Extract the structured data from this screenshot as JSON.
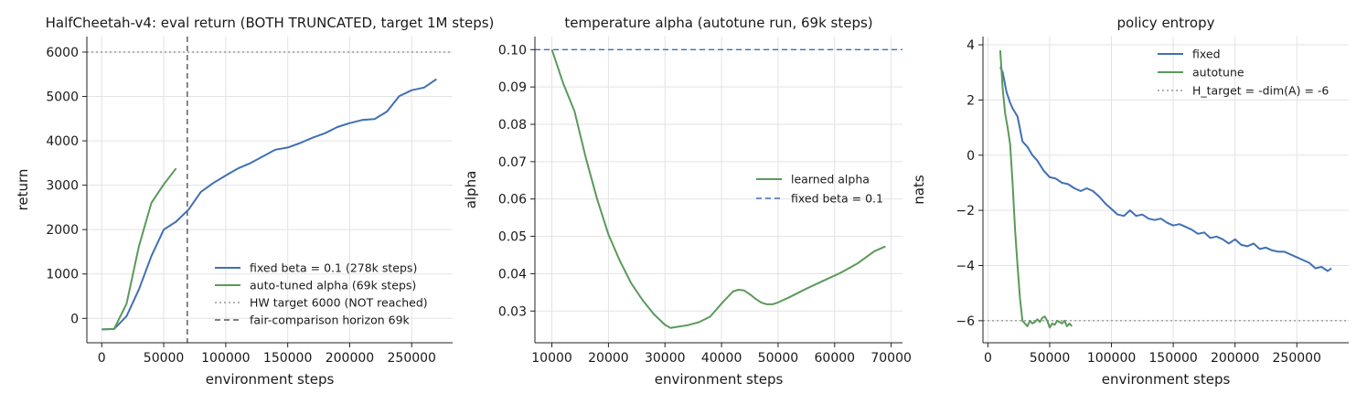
{
  "chart_data": [
    {
      "type": "line",
      "title": "HalfCheetah-v4: eval return  (BOTH TRUNCATED, target 1M steps)",
      "xlabel": "environment steps",
      "ylabel": "return",
      "xlim": [
        -12000,
        283000
      ],
      "ylim": [
        -550,
        6350
      ],
      "xticks": [
        0,
        50000,
        100000,
        150000,
        200000,
        250000
      ],
      "yticks": [
        0,
        1000,
        2000,
        3000,
        4000,
        5000,
        6000
      ],
      "grid": true,
      "legend_loc": "lower-right",
      "series": [
        {
          "name": "fixed beta = 0.1 (278k steps)",
          "color": "#4070b4",
          "style": "solid",
          "x": [
            0,
            10000,
            20000,
            30000,
            40000,
            50000,
            60000,
            70000,
            80000,
            90000,
            100000,
            110000,
            120000,
            130000,
            140000,
            150000,
            160000,
            170000,
            180000,
            190000,
            200000,
            210000,
            220000,
            230000,
            240000,
            250000,
            260000,
            270000
          ],
          "y": [
            -250,
            -240,
            50,
            650,
            1400,
            2000,
            2180,
            2450,
            2850,
            3050,
            3220,
            3380,
            3500,
            3650,
            3800,
            3850,
            3950,
            4070,
            4170,
            4310,
            4400,
            4470,
            4490,
            4660,
            5010,
            5140,
            5200,
            5390
          ]
        },
        {
          "name": "auto-tuned alpha (69k steps)",
          "color": "#5a9a5a",
          "style": "solid",
          "x": [
            0,
            10000,
            20000,
            30000,
            40000,
            50000,
            60000
          ],
          "y": [
            -250,
            -240,
            330,
            1620,
            2600,
            3020,
            3380
          ]
        },
        {
          "name": "HW target 6000 (NOT reached)",
          "color": "#999999",
          "style": "dotted",
          "hline": 6000
        },
        {
          "name": "fair-comparison horizon 69k",
          "color": "#555555",
          "style": "dashed",
          "vline": 69000
        }
      ]
    },
    {
      "type": "line",
      "title": "temperature alpha (autotune run, 69k steps)",
      "xlabel": "environment steps",
      "ylabel": "alpha",
      "xlim": [
        7000,
        72000
      ],
      "ylim": [
        0.0215,
        0.1035
      ],
      "xticks": [
        10000,
        20000,
        30000,
        40000,
        50000,
        60000,
        70000
      ],
      "yticks": [
        0.03,
        0.04,
        0.05,
        0.06,
        0.07,
        0.08,
        0.09,
        0.1
      ],
      "ytick_labels": [
        "0.03",
        "0.04",
        "0.05",
        "0.06",
        "0.07",
        "0.08",
        "0.09",
        "0.10"
      ],
      "grid": true,
      "legend_loc": "center-right",
      "series": [
        {
          "name": "learned alpha",
          "color": "#5a9a5a",
          "style": "solid",
          "x": [
            10000,
            12000,
            14000,
            16000,
            18000,
            20000,
            22000,
            24000,
            26000,
            28000,
            30000,
            31000,
            32000,
            34000,
            36000,
            38000,
            40000,
            42000,
            43000,
            44000,
            45000,
            46000,
            47000,
            48000,
            49000,
            50000,
            52000,
            55000,
            58000,
            61000,
            64000,
            67000,
            69000
          ],
          "y": [
            0.1,
            0.091,
            0.0835,
            0.071,
            0.06,
            0.0505,
            0.0435,
            0.0375,
            0.033,
            0.0292,
            0.0263,
            0.0255,
            0.0257,
            0.0262,
            0.027,
            0.0285,
            0.032,
            0.0352,
            0.0357,
            0.0355,
            0.0345,
            0.0333,
            0.0323,
            0.0318,
            0.0318,
            0.0323,
            0.0337,
            0.036,
            0.0381,
            0.0402,
            0.0427,
            0.046,
            0.0473
          ]
        },
        {
          "name": "fixed beta = 0.1",
          "color": "#4070b4",
          "style": "dashed",
          "hline": 0.1
        }
      ]
    },
    {
      "type": "line",
      "title": "policy entropy",
      "xlabel": "environment steps",
      "ylabel": "nats",
      "xlim": [
        -4000,
        292000
      ],
      "ylim": [
        -6.8,
        4.3
      ],
      "xticks": [
        0,
        50000,
        100000,
        150000,
        200000,
        250000
      ],
      "yticks": [
        -6,
        -4,
        -2,
        0,
        2,
        4
      ],
      "ytick_labels": [
        "−6",
        "−4",
        "−2",
        "0",
        "2",
        "4"
      ],
      "grid": true,
      "legend_loc": "top-right",
      "series": [
        {
          "name": "fixed",
          "color": "#4070b4",
          "style": "solid",
          "x": [
            10000,
            12000,
            15000,
            18000,
            20000,
            24000,
            28000,
            32000,
            36000,
            40000,
            45000,
            50000,
            55000,
            60000,
            65000,
            70000,
            75000,
            80000,
            85000,
            90000,
            95000,
            100000,
            105000,
            110000,
            115000,
            120000,
            125000,
            130000,
            135000,
            140000,
            145000,
            150000,
            155000,
            160000,
            165000,
            170000,
            175000,
            180000,
            185000,
            190000,
            195000,
            200000,
            205000,
            210000,
            215000,
            220000,
            225000,
            230000,
            235000,
            240000,
            245000,
            250000,
            255000,
            260000,
            265000,
            270000,
            275000,
            278000
          ],
          "y": [
            3.2,
            3.0,
            2.3,
            1.9,
            1.7,
            1.4,
            0.5,
            0.3,
            0.0,
            -0.2,
            -0.55,
            -0.8,
            -0.85,
            -1.0,
            -1.05,
            -1.2,
            -1.3,
            -1.2,
            -1.3,
            -1.5,
            -1.75,
            -1.95,
            -2.15,
            -2.2,
            -2.0,
            -2.2,
            -2.15,
            -2.3,
            -2.35,
            -2.3,
            -2.45,
            -2.55,
            -2.5,
            -2.6,
            -2.7,
            -2.85,
            -2.8,
            -3.0,
            -2.95,
            -3.05,
            -3.2,
            -3.05,
            -3.25,
            -3.3,
            -3.2,
            -3.4,
            -3.35,
            -3.45,
            -3.5,
            -3.5,
            -3.6,
            -3.7,
            -3.8,
            -3.9,
            -4.1,
            -4.05,
            -4.2,
            -4.1
          ]
        },
        {
          "name": "autotune",
          "color": "#5a9a5a",
          "style": "solid",
          "x": [
            10000,
            12000,
            14000,
            16000,
            18000,
            20000,
            22000,
            24000,
            26000,
            28000,
            30000,
            32000,
            34000,
            36000,
            38000,
            40000,
            42000,
            44000,
            46000,
            48000,
            50000,
            52000,
            54000,
            56000,
            58000,
            60000,
            62000,
            64000,
            66000,
            68000
          ],
          "y": [
            3.8,
            2.4,
            1.5,
            1.0,
            0.4,
            -1.0,
            -2.7,
            -4.0,
            -5.2,
            -6.0,
            -6.1,
            -6.2,
            -6.0,
            -6.1,
            -6.05,
            -5.95,
            -6.05,
            -5.9,
            -5.85,
            -6.0,
            -6.25,
            -6.1,
            -6.15,
            -6.0,
            -6.05,
            -6.1,
            -6.0,
            -6.2,
            -6.1,
            -6.2
          ]
        },
        {
          "name": "H_target = -dim(A) = -6",
          "color": "#999999",
          "style": "dotted",
          "hline": -6
        }
      ]
    }
  ]
}
